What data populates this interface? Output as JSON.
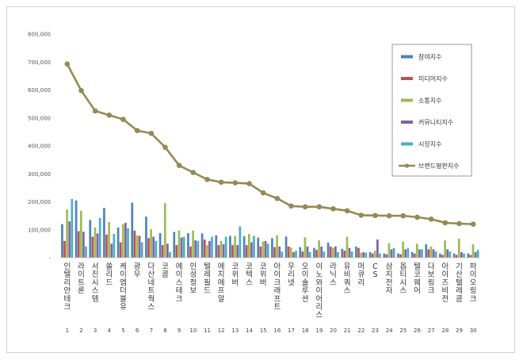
{
  "chart_data": {
    "type": "bar",
    "title": "",
    "xlabel": "",
    "ylabel": "",
    "ylim": [
      0,
      800000
    ],
    "yticks": [
      "-",
      "100,000",
      "200,000",
      "300,000",
      "400,000",
      "500,000",
      "600,000",
      "700,000",
      "800,000"
    ],
    "grid": false,
    "legend_position": "top-right",
    "categories": [
      "인텔리안테크",
      "라이트론",
      "서진시스템",
      "쏠리드",
      "케이엠더블유",
      "광무",
      "다산네트웍스",
      "코콤",
      "에이스테크",
      "인성정보",
      "텔레필드",
      "에치에프알",
      "코위버",
      "코텍스",
      "코위버",
      "아이크래프트",
      "우리넷",
      "오이솔루션",
      "이노와이어리스",
      "라닉스",
      "유비쿼스",
      "머큐리",
      "CS",
      "삼지전자",
      "옵티시스",
      "텔코웨어",
      "다보링크",
      "아이즈비전",
      "기산텔레콤",
      "파이오링크"
    ],
    "index_labels": [
      "1",
      "2",
      "3",
      "4",
      "5",
      "6",
      "7",
      "8",
      "9",
      "10",
      "11",
      "12",
      "13",
      "14",
      "15",
      "16",
      "17",
      "18",
      "19",
      "20",
      "21",
      "22",
      "23",
      "24",
      "25",
      "26",
      "27",
      "28",
      "29",
      "30"
    ],
    "series": [
      {
        "name": "참여지수",
        "kind": "bar",
        "color": "#4f81bd",
        "values": [
          120000,
          205000,
          135000,
          178000,
          108000,
          197000,
          147000,
          88000,
          92000,
          88000,
          87000,
          80000,
          78000,
          77000,
          72000,
          70000,
          76000,
          38000,
          35000,
          54000,
          32000,
          40000,
          20000,
          15000,
          15000,
          20000,
          48000,
          15000,
          15000,
          15000
        ]
      },
      {
        "name": "미디어지수",
        "kind": "bar",
        "color": "#c0504d",
        "values": [
          60000,
          95000,
          75000,
          82000,
          55000,
          97000,
          70000,
          45000,
          45000,
          40000,
          65000,
          45000,
          45000,
          45000,
          40000,
          38000,
          40000,
          22000,
          28000,
          40000,
          25000,
          35000,
          15000,
          12000,
          12000,
          15000,
          30000,
          10000,
          10000,
          10000
        ]
      },
      {
        "name": "소통지수",
        "kind": "bar",
        "color": "#9bbb59",
        "values": [
          172000,
          168000,
          108000,
          128000,
          120000,
          80000,
          102000,
          195000,
          98000,
          97000,
          45000,
          60000,
          78000,
          85000,
          58000,
          80000,
          36000,
          73000,
          62000,
          35000,
          75000,
          18000,
          25000,
          52000,
          58000,
          50000,
          40000,
          62000,
          68000,
          48000
        ]
      },
      {
        "name": "커뮤니티지수",
        "kind": "bar",
        "color": "#8064a2",
        "values": [
          130000,
          93000,
          87000,
          50000,
          125000,
          78000,
          75000,
          50000,
          72000,
          62000,
          60000,
          48000,
          45000,
          55000,
          60000,
          40000,
          20000,
          40000,
          40000,
          40000,
          35000,
          20000,
          65000,
          30000,
          30000,
          30000,
          30000,
          30000,
          20000,
          20000
        ]
      },
      {
        "name": "시장지수",
        "kind": "bar",
        "color": "#4bacc6",
        "values": [
          210000,
          40000,
          142000,
          85000,
          105000,
          55000,
          60000,
          20000,
          75000,
          60000,
          75000,
          75000,
          112000,
          78000,
          50000,
          22000,
          25000,
          20000,
          22000,
          20000,
          22000,
          18000,
          15000,
          35000,
          35000,
          30000,
          22000,
          22000,
          15000,
          28000
        ]
      },
      {
        "name": "브랜드평판지수",
        "kind": "line",
        "color": "#948a54",
        "values": [
          693000,
          598000,
          525000,
          510000,
          495000,
          455000,
          445000,
          395000,
          330000,
          305000,
          280000,
          270000,
          268000,
          265000,
          232000,
          212000,
          185000,
          182000,
          182000,
          175000,
          168000,
          152000,
          151000,
          150000,
          150000,
          145000,
          138000,
          125000,
          122000,
          120000
        ]
      }
    ]
  }
}
